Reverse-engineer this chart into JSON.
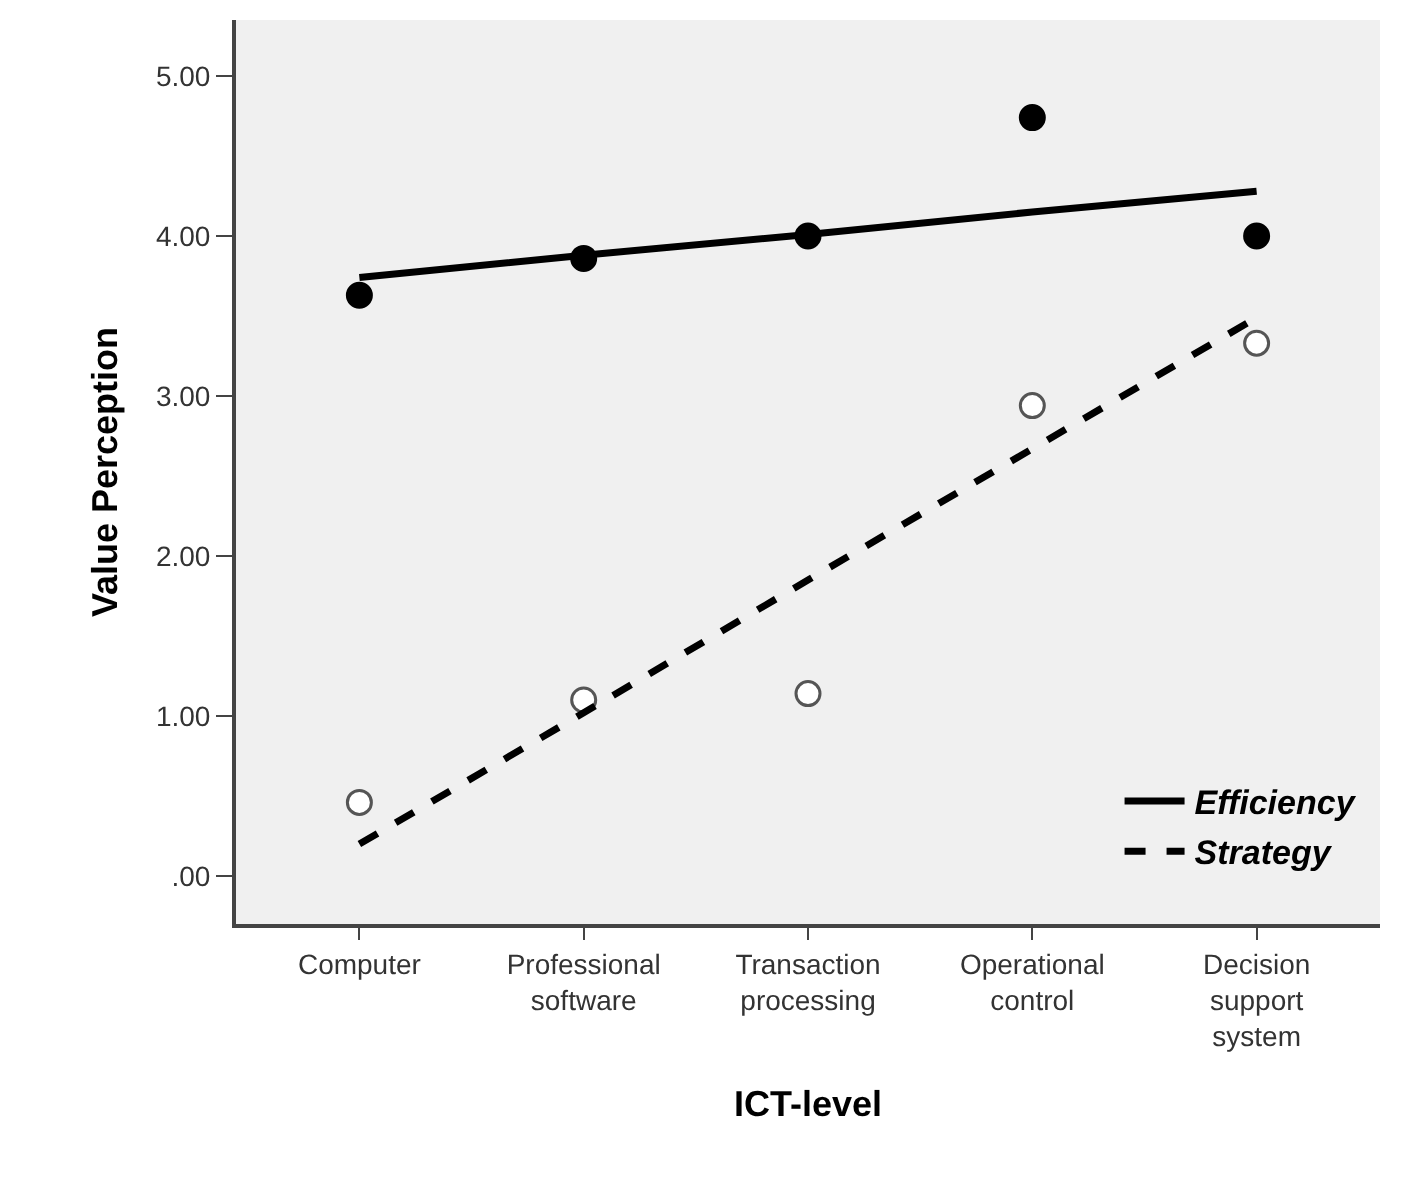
{
  "chart_data": {
    "type": "scatter",
    "xlabel": "ICT-level",
    "ylabel": "Value Perception",
    "categories": [
      "Computer",
      "Professional software",
      "Transaction processing",
      "Operational control",
      "Decision support system"
    ],
    "series": [
      {
        "color": "#000000",
        "marker": "circle",
        "values": [
          3.63,
          3.86,
          4.0,
          4.74,
          4.0
        ]
      },
      {
        "color": "#ffffff",
        "marker": "circle",
        "values": [
          0.46,
          1.1,
          1.14,
          2.94,
          3.33
        ]
      },
      {
        "type": "line",
        "name": "Efficiency",
        "color": "#000000",
        "line_style": "solid",
        "marker": "none",
        "values": [
          3.74,
          3.88,
          4.01,
          4.15,
          4.28
        ]
      },
      {
        "type": "line",
        "name": "Strategy",
        "color": "#000000",
        "line_style": "dashed",
        "marker": "none",
        "values": [
          0.2,
          1.02,
          1.85,
          2.67,
          3.49
        ]
      }
    ],
    "ylim": [
      -0.3,
      5.35
    ],
    "yticks": [
      {
        "value": 0,
        "label": ".00"
      },
      {
        "value": 1,
        "label": "1.00"
      },
      {
        "value": 2,
        "label": "2.00"
      },
      {
        "value": 3,
        "label": "3.00"
      },
      {
        "value": 4,
        "label": "4.00"
      },
      {
        "value": 5,
        "label": "5.00"
      }
    ],
    "grid": false,
    "legend": "bottom right"
  }
}
